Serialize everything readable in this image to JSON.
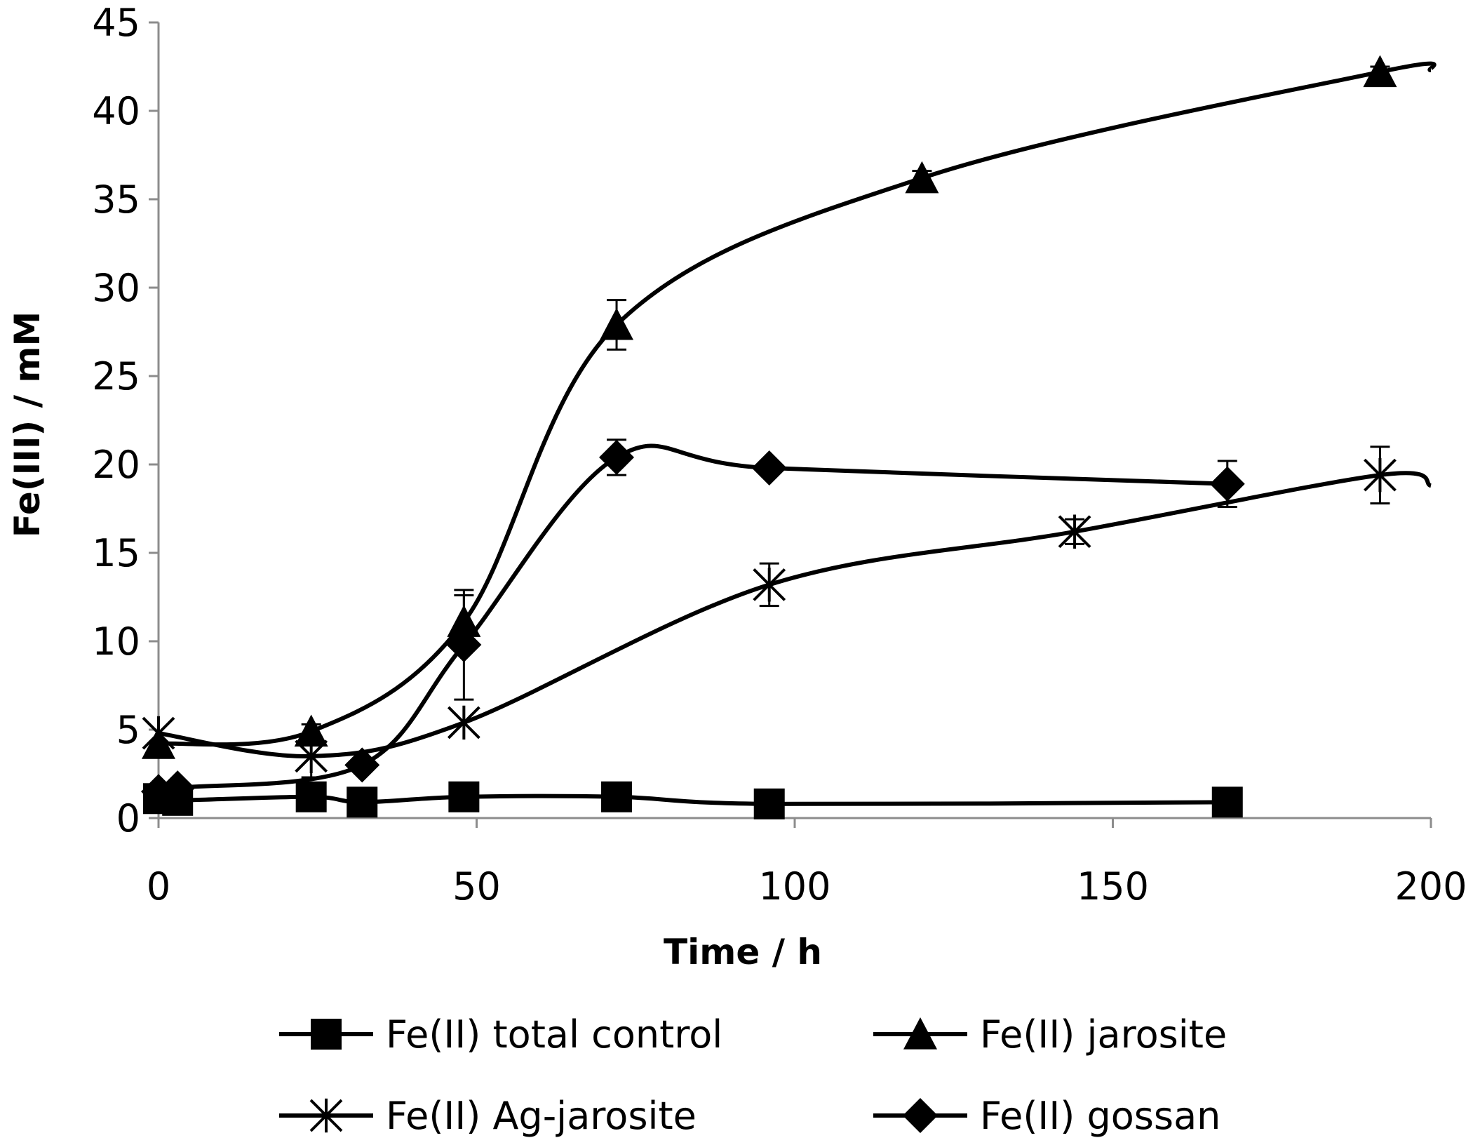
{
  "chart_data": {
    "type": "line",
    "title": "",
    "xlabel": "Time / h",
    "ylabel": "Fe(III) / mM",
    "xlim": [
      0,
      200
    ],
    "ylim": [
      0,
      45
    ],
    "xticks": [
      0,
      50,
      100,
      150,
      200
    ],
    "yticks": [
      0,
      5,
      10,
      15,
      20,
      25,
      30,
      35,
      40,
      45
    ],
    "grid": false,
    "legend_position": "bottom",
    "series": [
      {
        "name": "Fe(II) total control",
        "marker": "square",
        "x": [
          0,
          3,
          24,
          32,
          48,
          72,
          96,
          168
        ],
        "y": [
          1.1,
          1.0,
          1.2,
          0.9,
          1.2,
          1.2,
          0.8,
          0.9
        ],
        "err": [
          0,
          0,
          0,
          0,
          0,
          0,
          0,
          0
        ]
      },
      {
        "name": "Fe(II) jarosite",
        "marker": "triangle",
        "x": [
          0,
          24,
          48,
          72,
          120,
          192
        ],
        "y": [
          4.2,
          4.9,
          11.1,
          27.9,
          36.2,
          42.2
        ],
        "err": [
          0,
          0.4,
          1.5,
          1.4,
          0.4,
          0.3
        ]
      },
      {
        "name": "Fe(II) Ag-jarosite",
        "marker": "star",
        "x": [
          0,
          24,
          48,
          96,
          144,
          192
        ],
        "y": [
          4.8,
          3.5,
          5.4,
          13.2,
          16.2,
          19.4
        ],
        "err": [
          0,
          1.2,
          0,
          1.2,
          0.7,
          1.6
        ]
      },
      {
        "name": "Fe(II) gossan",
        "marker": "diamond",
        "x": [
          0,
          3,
          32,
          48,
          72,
          96,
          168
        ],
        "y": [
          1.5,
          1.7,
          3.0,
          9.8,
          20.4,
          19.8,
          18.9
        ],
        "err": [
          0,
          0,
          0,
          3.1,
          1.0,
          0,
          1.3
        ]
      }
    ],
    "tail_curves": [
      {
        "series": "Fe(II) jarosite",
        "x": [
          192,
          200
        ],
        "y": [
          42.2,
          42.3
        ]
      },
      {
        "series": "Fe(II) Ag-jarosite",
        "x": [
          192,
          200
        ],
        "y": [
          19.4,
          18.8
        ]
      }
    ]
  }
}
